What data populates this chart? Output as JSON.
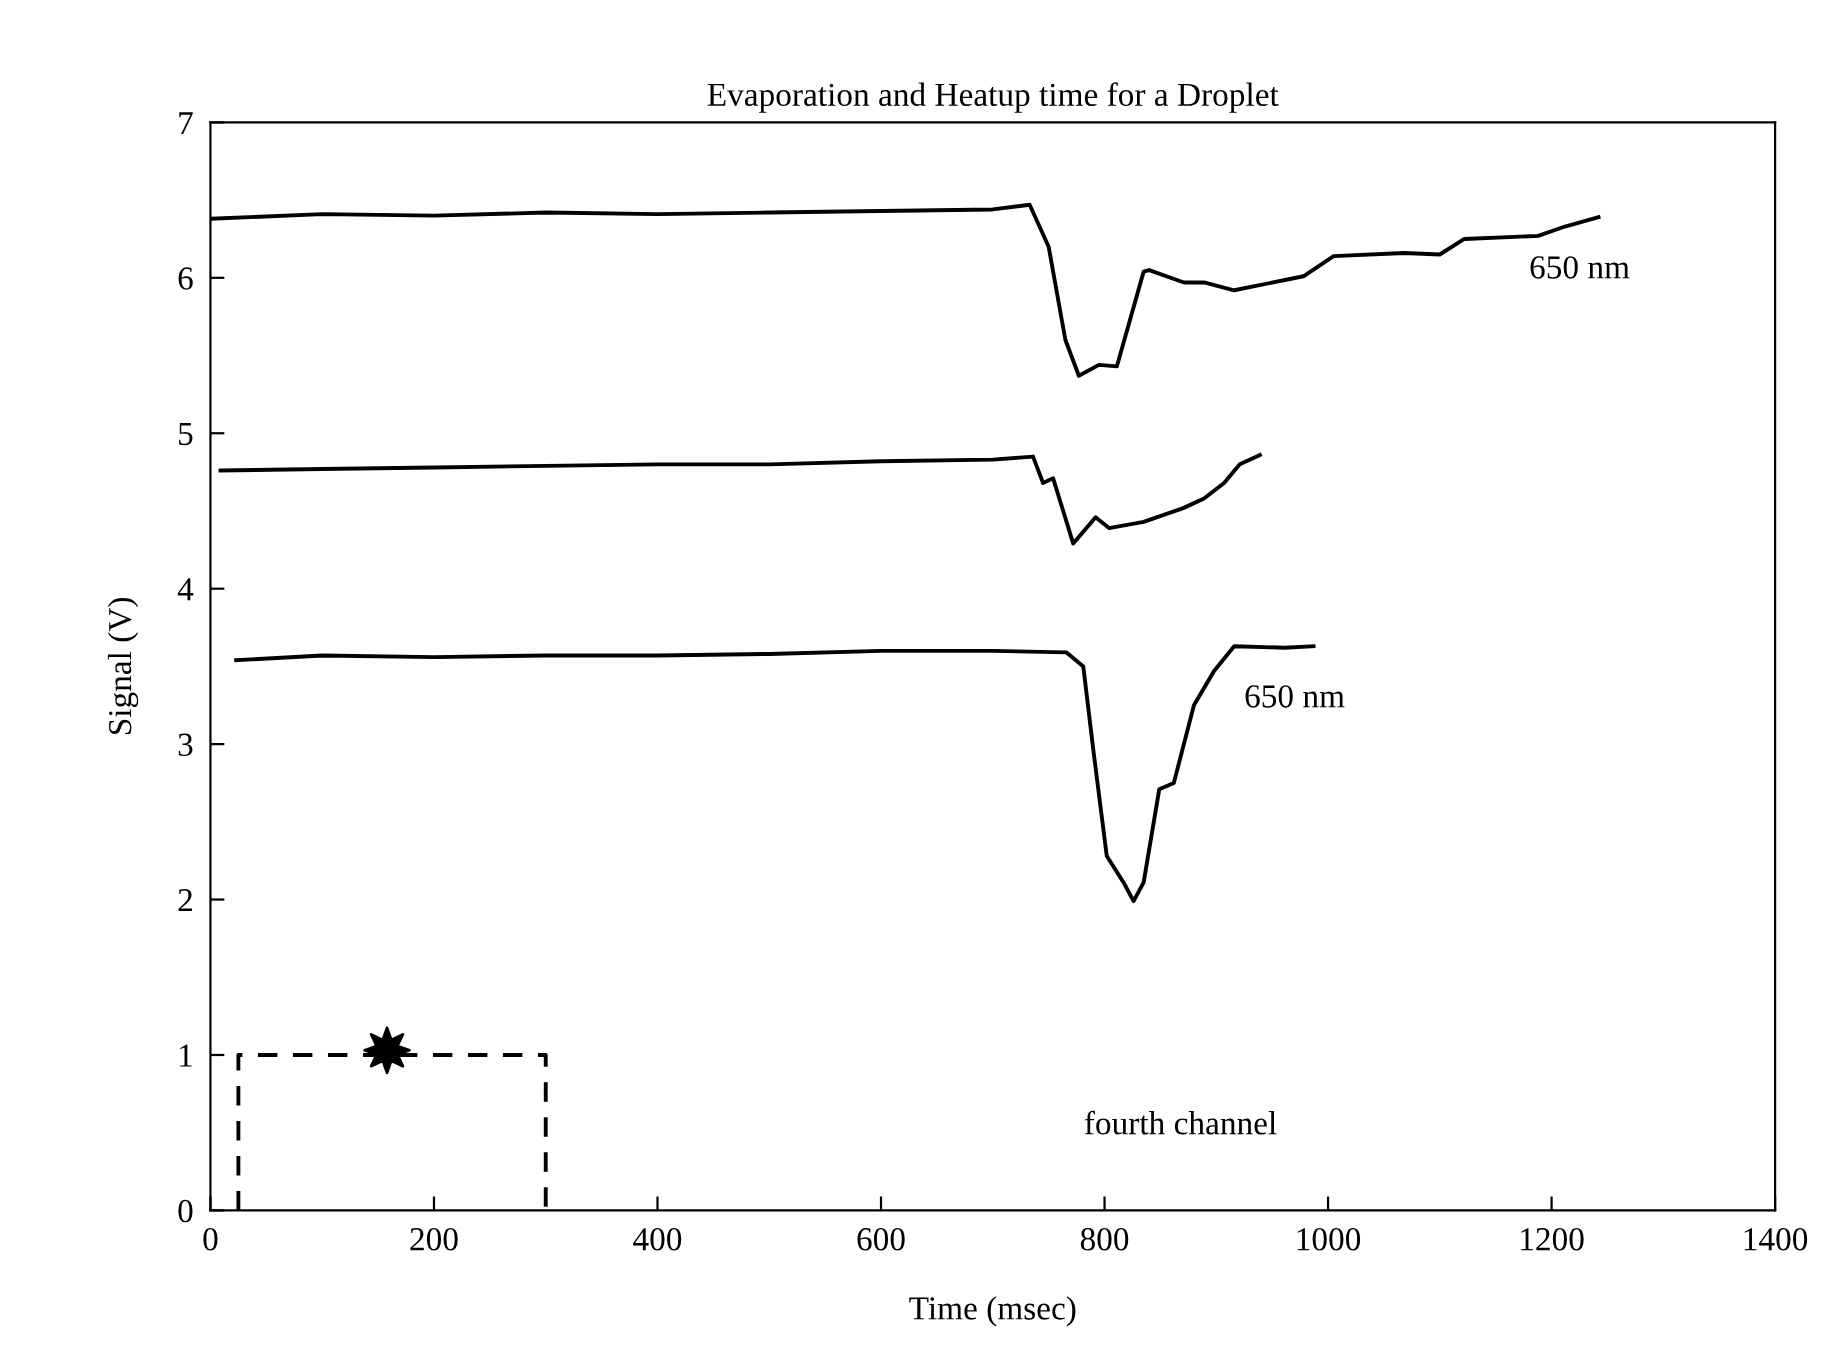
{
  "chart_data": {
    "type": "line",
    "title": "Evaporation and Heatup time for a Droplet",
    "xlabel": "Time (msec)",
    "ylabel": "Signal (V)",
    "xlim": [
      0,
      1400
    ],
    "ylim": [
      0,
      7
    ],
    "xticks": [
      0,
      200,
      400,
      600,
      800,
      1000,
      1200,
      1400
    ],
    "yticks": [
      0,
      1,
      2,
      3,
      4,
      5,
      6,
      7
    ],
    "grid": false,
    "line_style": "solid",
    "marker": "none",
    "series": [
      {
        "name": "650 nm",
        "color": "#000000",
        "x": [
          0,
          100,
          200,
          300,
          400,
          500,
          600,
          700,
          733,
          750,
          765,
          777,
          795,
          811,
          835,
          840,
          871,
          889,
          916,
          978,
          1005,
          1068,
          1100,
          1122,
          1188,
          1212,
          1242
        ],
        "values": [
          6.38,
          6.41,
          6.4,
          6.42,
          6.41,
          6.42,
          6.43,
          6.44,
          6.47,
          6.2,
          5.6,
          5.37,
          5.44,
          5.43,
          6.04,
          6.05,
          5.97,
          5.97,
          5.92,
          6.01,
          6.14,
          6.16,
          6.15,
          6.25,
          6.27,
          6.33,
          6.39
        ]
      },
      {
        "color": "#000000",
        "x": [
          9,
          100,
          200,
          300,
          400,
          500,
          600,
          700,
          736,
          745,
          754,
          772,
          792,
          804,
          835,
          871,
          889,
          907,
          921,
          939
        ],
        "values": [
          4.76,
          4.77,
          4.78,
          4.79,
          4.8,
          4.8,
          4.82,
          4.83,
          4.85,
          4.68,
          4.71,
          4.29,
          4.46,
          4.39,
          4.43,
          4.52,
          4.58,
          4.68,
          4.8,
          4.86
        ],
        "line_style": "solid"
      },
      {
        "name": "650 nm",
        "color": "#000000",
        "x": [
          23,
          100,
          200,
          300,
          400,
          500,
          600,
          700,
          766,
          781,
          790,
          802,
          817,
          826,
          835,
          849,
          862,
          880,
          898,
          916,
          961,
          987
        ],
        "values": [
          3.54,
          3.57,
          3.56,
          3.57,
          3.57,
          3.58,
          3.6,
          3.6,
          3.59,
          3.5,
          2.96,
          2.28,
          2.11,
          1.99,
          2.11,
          2.71,
          2.75,
          3.25,
          3.47,
          3.63,
          3.62,
          3.63
        ]
      },
      {
        "color": "#000000",
        "x": [
          25,
          25,
          300,
          300
        ],
        "values": [
          0,
          1,
          1,
          0
        ],
        "line_style": "dashed"
      },
      {
        "type": "scatter",
        "color": "#000000",
        "x": [
          158
        ],
        "values": [
          1.03
        ],
        "marker": "star"
      }
    ],
    "annotations": [
      "fourth channel"
    ]
  }
}
